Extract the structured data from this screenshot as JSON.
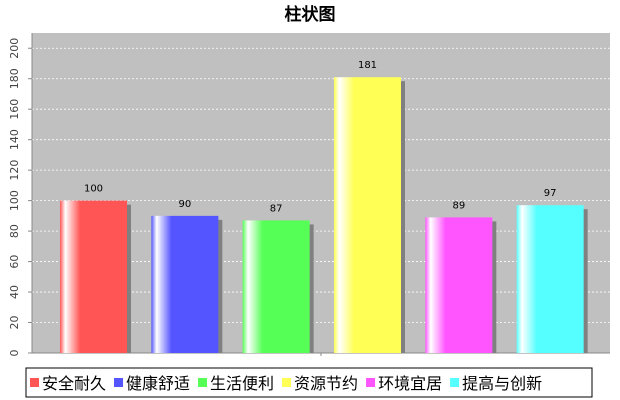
{
  "chart_data": {
    "type": "bar",
    "title": "柱状图",
    "categories": [
      "安全耐久",
      "健康舒适",
      "生活便利",
      "资源节约",
      "环境宜居",
      "提高与创新"
    ],
    "values": [
      100,
      90,
      87,
      181,
      89,
      97
    ],
    "colors": [
      "#ff5555",
      "#5555ff",
      "#55ff55",
      "#ffff55",
      "#ff55ff",
      "#55ffff"
    ],
    "ylim": [
      0,
      210
    ],
    "yticks": [
      0,
      20,
      40,
      60,
      80,
      100,
      120,
      140,
      160,
      180,
      200
    ],
    "grid": true,
    "legend": "bottom"
  }
}
